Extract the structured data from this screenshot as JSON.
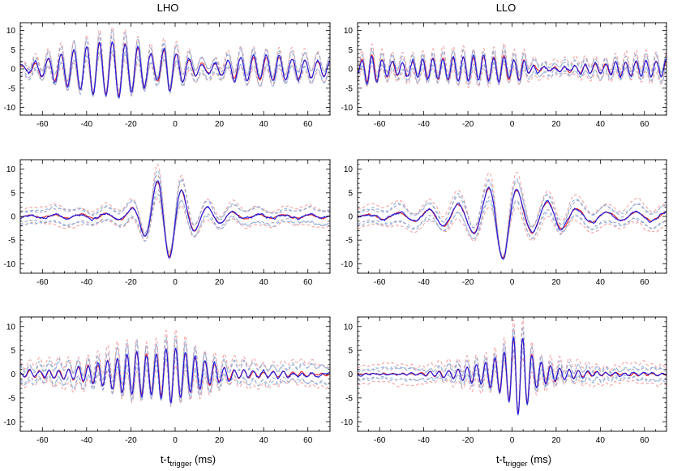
{
  "figure": {
    "column_titles": [
      "LHO",
      "LLO"
    ],
    "xlabel_main": "t-t",
    "xlabel_sub": "trigger",
    "xlabel_unit": " (ms)"
  },
  "colors": {
    "red_solid": "#e8201c",
    "blue_solid": "#1a1ae6",
    "red_dashed": "#f4a6a6",
    "blue_dashed": "#8fb8e0",
    "gray_dashed": "#a8a8c8"
  },
  "chart_data": [
    {
      "type": "line",
      "column": "LHO",
      "row": 1,
      "xlim": [
        -70,
        70
      ],
      "ylim": [
        -12,
        12
      ],
      "xticks": [
        -60,
        -40,
        -20,
        0,
        20,
        40,
        60
      ],
      "yticks": [
        -10,
        -5,
        0,
        5,
        10
      ],
      "signal": {
        "kind": "sine",
        "env": [
          [
            -70,
            0.5
          ],
          [
            -60,
            2
          ],
          [
            -45,
            5
          ],
          [
            -35,
            6.5
          ],
          [
            -25,
            7
          ],
          [
            -15,
            5
          ],
          [
            -8,
            3
          ],
          [
            -3,
            6
          ],
          [
            0,
            4
          ],
          [
            8,
            2
          ],
          [
            15,
            1
          ],
          [
            22,
            1.8
          ],
          [
            30,
            3
          ],
          [
            45,
            3
          ],
          [
            60,
            2.2
          ],
          [
            70,
            1.8
          ]
        ],
        "period": 5.8,
        "phase": 0.9
      },
      "blue_noise": 0.7,
      "band": 1.9,
      "red_band": 2.3
    },
    {
      "type": "line",
      "column": "LLO",
      "row": 1,
      "xlim": [
        -70,
        70
      ],
      "ylim": [
        -12,
        12
      ],
      "xticks": [
        -60,
        -40,
        -20,
        0,
        20,
        40,
        60
      ],
      "yticks": [
        -10,
        -5,
        0,
        5,
        10
      ],
      "signal": {
        "kind": "sine",
        "env": [
          [
            -70,
            1.5
          ],
          [
            -65,
            4
          ],
          [
            -60,
            2.5
          ],
          [
            -50,
            1.5
          ],
          [
            -40,
            2.5
          ],
          [
            -25,
            3
          ],
          [
            -10,
            3
          ],
          [
            -3,
            3.5
          ],
          [
            0,
            2
          ],
          [
            4,
            3
          ],
          [
            8,
            1
          ],
          [
            15,
            0.5
          ],
          [
            25,
            0.6
          ],
          [
            35,
            1.2
          ],
          [
            50,
            1.8
          ],
          [
            60,
            2
          ],
          [
            70,
            2
          ]
        ],
        "period": 4.6,
        "phase": 0.3
      },
      "blue_noise": 0.7,
      "band": 1.6,
      "red_band": 2.4
    },
    {
      "type": "line",
      "column": "LHO",
      "row": 2,
      "xlim": [
        -70,
        70
      ],
      "ylim": [
        -12,
        12
      ],
      "xticks": [
        -60,
        -40,
        -20,
        0,
        20,
        40,
        60
      ],
      "yticks": [
        -10,
        -5,
        0,
        5,
        10
      ],
      "signal": {
        "kind": "sine",
        "env": [
          [
            -70,
            0.15
          ],
          [
            -55,
            0.3
          ],
          [
            -40,
            0.5
          ],
          [
            -25,
            0.6
          ],
          [
            -18,
            2
          ],
          [
            -12,
            5
          ],
          [
            -7,
            8
          ],
          [
            -3,
            8.5
          ],
          [
            1,
            7
          ],
          [
            5,
            4
          ],
          [
            12,
            2.2
          ],
          [
            20,
            1.5
          ],
          [
            30,
            0.5
          ],
          [
            45,
            0.35
          ],
          [
            60,
            0.35
          ],
          [
            70,
            0.3
          ]
        ],
        "period": 11.5,
        "phase": -0.2
      },
      "blue_noise": 0.35,
      "band": 1.7,
      "red_band": 2.1
    },
    {
      "type": "line",
      "column": "LLO",
      "row": 2,
      "xlim": [
        -70,
        70
      ],
      "ylim": [
        -12,
        12
      ],
      "xticks": [
        -60,
        -40,
        -20,
        0,
        20,
        40,
        60
      ],
      "yticks": [
        -10,
        -5,
        0,
        5,
        10
      ],
      "signal": {
        "kind": "sine",
        "env": [
          [
            -70,
            0.2
          ],
          [
            -55,
            0.6
          ],
          [
            -40,
            1.2
          ],
          [
            -30,
            2.2
          ],
          [
            -20,
            2.8
          ],
          [
            -12,
            5
          ],
          [
            -7,
            8.5
          ],
          [
            -3,
            9
          ],
          [
            1,
            6
          ],
          [
            5,
            4
          ],
          [
            12,
            3
          ],
          [
            20,
            3
          ],
          [
            30,
            1.5
          ],
          [
            45,
            0.8
          ],
          [
            60,
            1
          ],
          [
            70,
            0.8
          ]
        ],
        "period": 13.5,
        "phase": 0.4
      },
      "blue_noise": 0.4,
      "band": 1.8,
      "red_band": 2.6
    },
    {
      "type": "line",
      "column": "LHO",
      "row": 3,
      "xlim": [
        -70,
        70
      ],
      "ylim": [
        -12,
        12
      ],
      "xticks": [
        -60,
        -40,
        -20,
        0,
        20,
        40,
        60
      ],
      "yticks": [
        -10,
        -5,
        0,
        5,
        10
      ],
      "signal": {
        "kind": "sine",
        "env": [
          [
            -70,
            0.5
          ],
          [
            -50,
            1
          ],
          [
            -35,
            2
          ],
          [
            -25,
            3.5
          ],
          [
            -18,
            4.5
          ],
          [
            -10,
            4
          ],
          [
            -5,
            5
          ],
          [
            -2,
            6
          ],
          [
            2,
            5
          ],
          [
            8,
            3.5
          ],
          [
            15,
            2.5
          ],
          [
            25,
            1
          ],
          [
            40,
            0.6
          ],
          [
            55,
            0.4
          ],
          [
            70,
            0.3
          ]
        ],
        "period": 4.4,
        "phase": 1.2
      },
      "blue_noise": 0.5,
      "band": 1.9,
      "red_band": 2.7
    },
    {
      "type": "line",
      "column": "LLO",
      "row": 3,
      "xlim": [
        -70,
        70
      ],
      "ylim": [
        -12,
        12
      ],
      "xticks": [
        -60,
        -40,
        -20,
        0,
        20,
        40,
        60
      ],
      "yticks": [
        -10,
        -5,
        0,
        5,
        10
      ],
      "signal": {
        "kind": "sine",
        "env": [
          [
            -70,
            0.1
          ],
          [
            -45,
            0.15
          ],
          [
            -35,
            0.4
          ],
          [
            -25,
            1
          ],
          [
            -15,
            2
          ],
          [
            -8,
            3
          ],
          [
            -2,
            5
          ],
          [
            2,
            8.5
          ],
          [
            6,
            7
          ],
          [
            10,
            3
          ],
          [
            15,
            2
          ],
          [
            25,
            1
          ],
          [
            35,
            0.5
          ],
          [
            50,
            0.3
          ],
          [
            70,
            0.2
          ]
        ],
        "period": 4.2,
        "phase": 0.6
      },
      "blue_noise": 0.25,
      "band": 1.3,
      "red_band": 2.3
    }
  ]
}
